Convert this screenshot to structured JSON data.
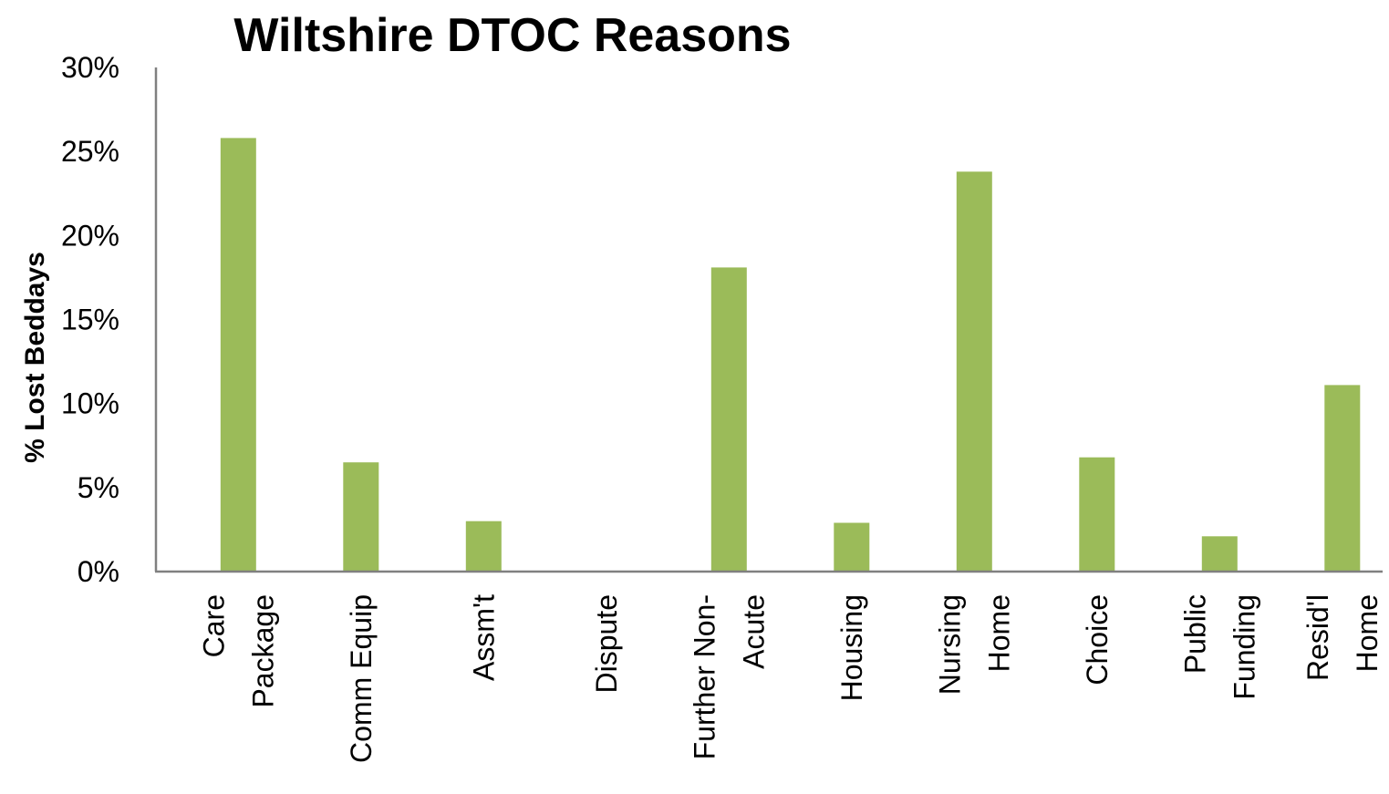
{
  "chart_data": {
    "type": "bar",
    "title": "Wiltshire DTOC Reasons",
    "xlabel": "",
    "ylabel": "% Lost Beddays",
    "ylim": [
      0,
      30
    ],
    "yticks": [
      "0%",
      "5%",
      "10%",
      "15%",
      "20%",
      "25%",
      "30%"
    ],
    "grid": false,
    "legend": "none",
    "bar_color": "#9bbb59",
    "axis_color": "#808080",
    "categories": [
      [
        "Care",
        "Package"
      ],
      [
        "Comm Equip"
      ],
      [
        "Assm't"
      ],
      [
        "Dispute"
      ],
      [
        "Further Non-",
        "Acute"
      ],
      [
        "Housing"
      ],
      [
        "Nursing",
        "Home"
      ],
      [
        "Choice"
      ],
      [
        "Public",
        "Funding"
      ],
      [
        "Resid'l",
        "Home"
      ]
    ],
    "values": [
      25.8,
      6.5,
      3.0,
      0,
      18.1,
      2.9,
      23.8,
      6.8,
      2.1,
      11.1
    ]
  }
}
